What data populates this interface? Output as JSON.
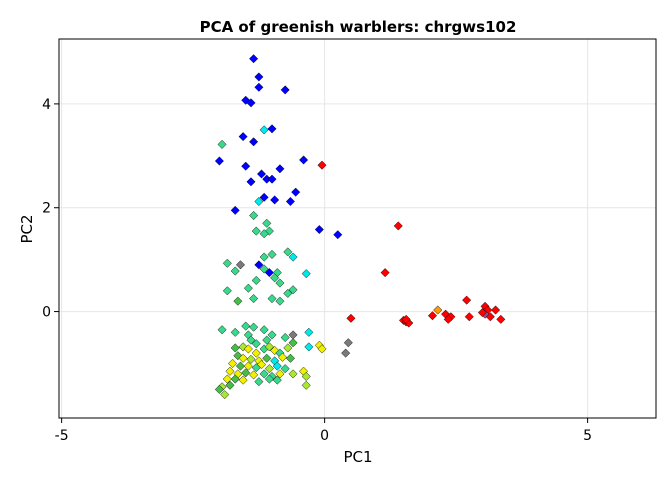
{
  "chart_data": {
    "type": "scatter",
    "title": "PCA of greenish warblers: chrgws102",
    "xlabel": "PC1",
    "ylabel": "PC2",
    "xlim": [
      -5.05,
      6.3
    ],
    "ylim": [
      -2.05,
      5.25
    ],
    "xticks": [
      -5,
      0,
      5
    ],
    "yticks": [
      0,
      2,
      4
    ],
    "grid": true,
    "legend": "none",
    "marker": "diamond",
    "colors": {
      "blue": "#0000ff",
      "cyan": "#00e8e8",
      "seagreen": "#3ad88a",
      "green": "#44bf44",
      "lime": "#a8e830",
      "yellow": "#f0f000",
      "orange": "#ff9900",
      "red": "#ff0000",
      "gray": "#7a7a7a",
      "purple": "#8855aa"
    },
    "points": [
      {
        "x": -1.35,
        "y": 4.87,
        "c": "blue"
      },
      {
        "x": -1.25,
        "y": 4.52,
        "c": "blue"
      },
      {
        "x": -1.25,
        "y": 4.32,
        "c": "blue"
      },
      {
        "x": -0.75,
        "y": 4.27,
        "c": "blue"
      },
      {
        "x": -1.5,
        "y": 4.07,
        "c": "blue"
      },
      {
        "x": -1.4,
        "y": 4.02,
        "c": "blue"
      },
      {
        "x": -1.55,
        "y": 3.37,
        "c": "blue"
      },
      {
        "x": -1.35,
        "y": 3.27,
        "c": "blue"
      },
      {
        "x": -1.0,
        "y": 3.52,
        "c": "blue"
      },
      {
        "x": -1.15,
        "y": 3.5,
        "c": "cyan"
      },
      {
        "x": -1.95,
        "y": 3.22,
        "c": "seagreen"
      },
      {
        "x": -2.0,
        "y": 2.9,
        "c": "blue"
      },
      {
        "x": -1.5,
        "y": 2.8,
        "c": "blue"
      },
      {
        "x": -1.2,
        "y": 2.65,
        "c": "blue"
      },
      {
        "x": -1.1,
        "y": 2.55,
        "c": "blue"
      },
      {
        "x": -0.85,
        "y": 2.75,
        "c": "blue"
      },
      {
        "x": -0.4,
        "y": 2.92,
        "c": "blue"
      },
      {
        "x": -1.4,
        "y": 2.5,
        "c": "blue"
      },
      {
        "x": -1.0,
        "y": 2.55,
        "c": "blue"
      },
      {
        "x": -0.55,
        "y": 2.3,
        "c": "blue"
      },
      {
        "x": -0.95,
        "y": 2.15,
        "c": "blue"
      },
      {
        "x": -1.25,
        "y": 2.12,
        "c": "cyan"
      },
      {
        "x": -1.15,
        "y": 2.2,
        "c": "blue"
      },
      {
        "x": -0.65,
        "y": 2.12,
        "c": "blue"
      },
      {
        "x": -1.7,
        "y": 1.95,
        "c": "blue"
      },
      {
        "x": -1.35,
        "y": 1.85,
        "c": "seagreen"
      },
      {
        "x": -1.1,
        "y": 1.7,
        "c": "seagreen"
      },
      {
        "x": -1.3,
        "y": 1.55,
        "c": "seagreen"
      },
      {
        "x": -1.05,
        "y": 1.55,
        "c": "seagreen"
      },
      {
        "x": -1.15,
        "y": 1.5,
        "c": "seagreen"
      },
      {
        "x": -0.1,
        "y": 1.58,
        "c": "blue"
      },
      {
        "x": 0.25,
        "y": 1.48,
        "c": "blue"
      },
      {
        "x": -0.05,
        "y": 2.82,
        "c": "red"
      },
      {
        "x": -0.7,
        "y": 1.15,
        "c": "seagreen"
      },
      {
        "x": -0.6,
        "y": 1.05,
        "c": "cyan"
      },
      {
        "x": -1.15,
        "y": 1.05,
        "c": "seagreen"
      },
      {
        "x": -1.0,
        "y": 1.1,
        "c": "seagreen"
      },
      {
        "x": -1.85,
        "y": 0.93,
        "c": "seagreen"
      },
      {
        "x": -1.6,
        "y": 0.9,
        "c": "gray"
      },
      {
        "x": -1.25,
        "y": 0.9,
        "c": "blue"
      },
      {
        "x": -1.15,
        "y": 0.82,
        "c": "seagreen"
      },
      {
        "x": -1.05,
        "y": 0.75,
        "c": "blue"
      },
      {
        "x": -0.9,
        "y": 0.75,
        "c": "seagreen"
      },
      {
        "x": -1.7,
        "y": 0.78,
        "c": "seagreen"
      },
      {
        "x": -0.35,
        "y": 0.73,
        "c": "cyan"
      },
      {
        "x": -1.3,
        "y": 0.6,
        "c": "seagreen"
      },
      {
        "x": -0.95,
        "y": 0.65,
        "c": "seagreen"
      },
      {
        "x": -0.85,
        "y": 0.55,
        "c": "seagreen"
      },
      {
        "x": -1.45,
        "y": 0.45,
        "c": "seagreen"
      },
      {
        "x": -1.85,
        "y": 0.4,
        "c": "seagreen"
      },
      {
        "x": -0.6,
        "y": 0.42,
        "c": "seagreen"
      },
      {
        "x": -0.7,
        "y": 0.35,
        "c": "seagreen"
      },
      {
        "x": -1.65,
        "y": 0.2,
        "c": "green"
      },
      {
        "x": -1.35,
        "y": 0.25,
        "c": "seagreen"
      },
      {
        "x": -1.0,
        "y": 0.25,
        "c": "seagreen"
      },
      {
        "x": -0.85,
        "y": 0.2,
        "c": "seagreen"
      },
      {
        "x": 1.4,
        "y": 1.65,
        "c": "red"
      },
      {
        "x": 1.15,
        "y": 0.75,
        "c": "red"
      },
      {
        "x": 0.5,
        "y": -0.13,
        "c": "red"
      },
      {
        "x": 1.5,
        "y": -0.17,
        "c": "red"
      },
      {
        "x": 1.55,
        "y": -0.2,
        "c": "red"
      },
      {
        "x": 1.6,
        "y": -0.22,
        "c": "red"
      },
      {
        "x": 1.55,
        "y": -0.15,
        "c": "red"
      },
      {
        "x": 2.05,
        "y": -0.08,
        "c": "red"
      },
      {
        "x": 2.15,
        "y": 0.03,
        "c": "orange"
      },
      {
        "x": 2.3,
        "y": -0.05,
        "c": "red"
      },
      {
        "x": 2.4,
        "y": -0.1,
        "c": "red"
      },
      {
        "x": 2.35,
        "y": -0.15,
        "c": "red"
      },
      {
        "x": 2.7,
        "y": 0.22,
        "c": "red"
      },
      {
        "x": 2.75,
        "y": -0.1,
        "c": "red"
      },
      {
        "x": 3.05,
        "y": 0.1,
        "c": "red"
      },
      {
        "x": 3.1,
        "y": 0.03,
        "c": "red"
      },
      {
        "x": 3.05,
        "y": -0.05,
        "c": "purple"
      },
      {
        "x": 3.15,
        "y": -0.1,
        "c": "red"
      },
      {
        "x": 3.25,
        "y": 0.03,
        "c": "red"
      },
      {
        "x": 3.35,
        "y": -0.15,
        "c": "red"
      },
      {
        "x": 3.0,
        "y": -0.02,
        "c": "red"
      },
      {
        "x": 0.45,
        "y": -0.6,
        "c": "gray"
      },
      {
        "x": 0.4,
        "y": -0.8,
        "c": "gray"
      },
      {
        "x": -1.95,
        "y": -0.35,
        "c": "seagreen"
      },
      {
        "x": -1.5,
        "y": -0.28,
        "c": "seagreen"
      },
      {
        "x": -1.35,
        "y": -0.3,
        "c": "seagreen"
      },
      {
        "x": -1.7,
        "y": -0.4,
        "c": "seagreen"
      },
      {
        "x": -1.45,
        "y": -0.45,
        "c": "seagreen"
      },
      {
        "x": -1.15,
        "y": -0.35,
        "c": "seagreen"
      },
      {
        "x": -1.0,
        "y": -0.45,
        "c": "seagreen"
      },
      {
        "x": -0.6,
        "y": -0.45,
        "c": "gray"
      },
      {
        "x": -0.3,
        "y": -0.4,
        "c": "cyan"
      },
      {
        "x": -1.4,
        "y": -0.55,
        "c": "seagreen"
      },
      {
        "x": -0.75,
        "y": -0.5,
        "c": "seagreen"
      },
      {
        "x": -1.3,
        "y": -0.62,
        "c": "seagreen"
      },
      {
        "x": -1.1,
        "y": -0.55,
        "c": "seagreen"
      },
      {
        "x": -0.6,
        "y": -0.6,
        "c": "green"
      },
      {
        "x": -1.7,
        "y": -0.7,
        "c": "green"
      },
      {
        "x": -1.55,
        "y": -0.68,
        "c": "lime"
      },
      {
        "x": -1.45,
        "y": -0.72,
        "c": "yellow"
      },
      {
        "x": -1.3,
        "y": -0.8,
        "c": "yellow"
      },
      {
        "x": -1.15,
        "y": -0.72,
        "c": "seagreen"
      },
      {
        "x": -1.05,
        "y": -0.68,
        "c": "lime"
      },
      {
        "x": -0.95,
        "y": -0.75,
        "c": "yellow"
      },
      {
        "x": -0.85,
        "y": -0.8,
        "c": "seagreen"
      },
      {
        "x": -0.7,
        "y": -0.7,
        "c": "lime"
      },
      {
        "x": -0.3,
        "y": -0.68,
        "c": "cyan"
      },
      {
        "x": -0.1,
        "y": -0.65,
        "c": "yellow"
      },
      {
        "x": -0.05,
        "y": -0.72,
        "c": "yellow"
      },
      {
        "x": -1.65,
        "y": -0.85,
        "c": "green"
      },
      {
        "x": -1.55,
        "y": -0.9,
        "c": "yellow"
      },
      {
        "x": -1.4,
        "y": -0.92,
        "c": "lime"
      },
      {
        "x": -1.25,
        "y": -0.95,
        "c": "yellow"
      },
      {
        "x": -1.1,
        "y": -0.9,
        "c": "green"
      },
      {
        "x": -0.95,
        "y": -0.95,
        "c": "cyan"
      },
      {
        "x": -0.8,
        "y": -0.88,
        "c": "yellow"
      },
      {
        "x": -0.65,
        "y": -0.9,
        "c": "green"
      },
      {
        "x": -1.75,
        "y": -1.0,
        "c": "yellow"
      },
      {
        "x": -1.6,
        "y": -1.05,
        "c": "green"
      },
      {
        "x": -1.45,
        "y": -1.05,
        "c": "yellow"
      },
      {
        "x": -1.3,
        "y": -1.08,
        "c": "seagreen"
      },
      {
        "x": -1.2,
        "y": -1.02,
        "c": "yellow"
      },
      {
        "x": -1.05,
        "y": -1.1,
        "c": "lime"
      },
      {
        "x": -0.9,
        "y": -1.05,
        "c": "cyan"
      },
      {
        "x": -0.75,
        "y": -1.1,
        "c": "seagreen"
      },
      {
        "x": -1.8,
        "y": -1.15,
        "c": "yellow"
      },
      {
        "x": -1.65,
        "y": -1.2,
        "c": "yellow"
      },
      {
        "x": -1.5,
        "y": -1.18,
        "c": "green"
      },
      {
        "x": -1.35,
        "y": -1.22,
        "c": "yellow"
      },
      {
        "x": -1.15,
        "y": -1.2,
        "c": "seagreen"
      },
      {
        "x": -1.0,
        "y": -1.25,
        "c": "seagreen"
      },
      {
        "x": -0.85,
        "y": -1.2,
        "c": "yellow"
      },
      {
        "x": -0.6,
        "y": -1.2,
        "c": "lime"
      },
      {
        "x": -0.4,
        "y": -1.15,
        "c": "yellow"
      },
      {
        "x": -1.85,
        "y": -1.3,
        "c": "yellow"
      },
      {
        "x": -1.7,
        "y": -1.3,
        "c": "green"
      },
      {
        "x": -1.55,
        "y": -1.32,
        "c": "yellow"
      },
      {
        "x": -1.25,
        "y": -1.35,
        "c": "seagreen"
      },
      {
        "x": -1.05,
        "y": -1.3,
        "c": "seagreen"
      },
      {
        "x": -0.9,
        "y": -1.32,
        "c": "seagreen"
      },
      {
        "x": -0.35,
        "y": -1.25,
        "c": "lime"
      },
      {
        "x": -1.95,
        "y": -1.45,
        "c": "lime"
      },
      {
        "x": -1.8,
        "y": -1.42,
        "c": "green"
      },
      {
        "x": -0.35,
        "y": -1.42,
        "c": "lime"
      },
      {
        "x": -1.9,
        "y": -1.6,
        "c": "lime"
      },
      {
        "x": -2.0,
        "y": -1.5,
        "c": "green"
      }
    ]
  }
}
